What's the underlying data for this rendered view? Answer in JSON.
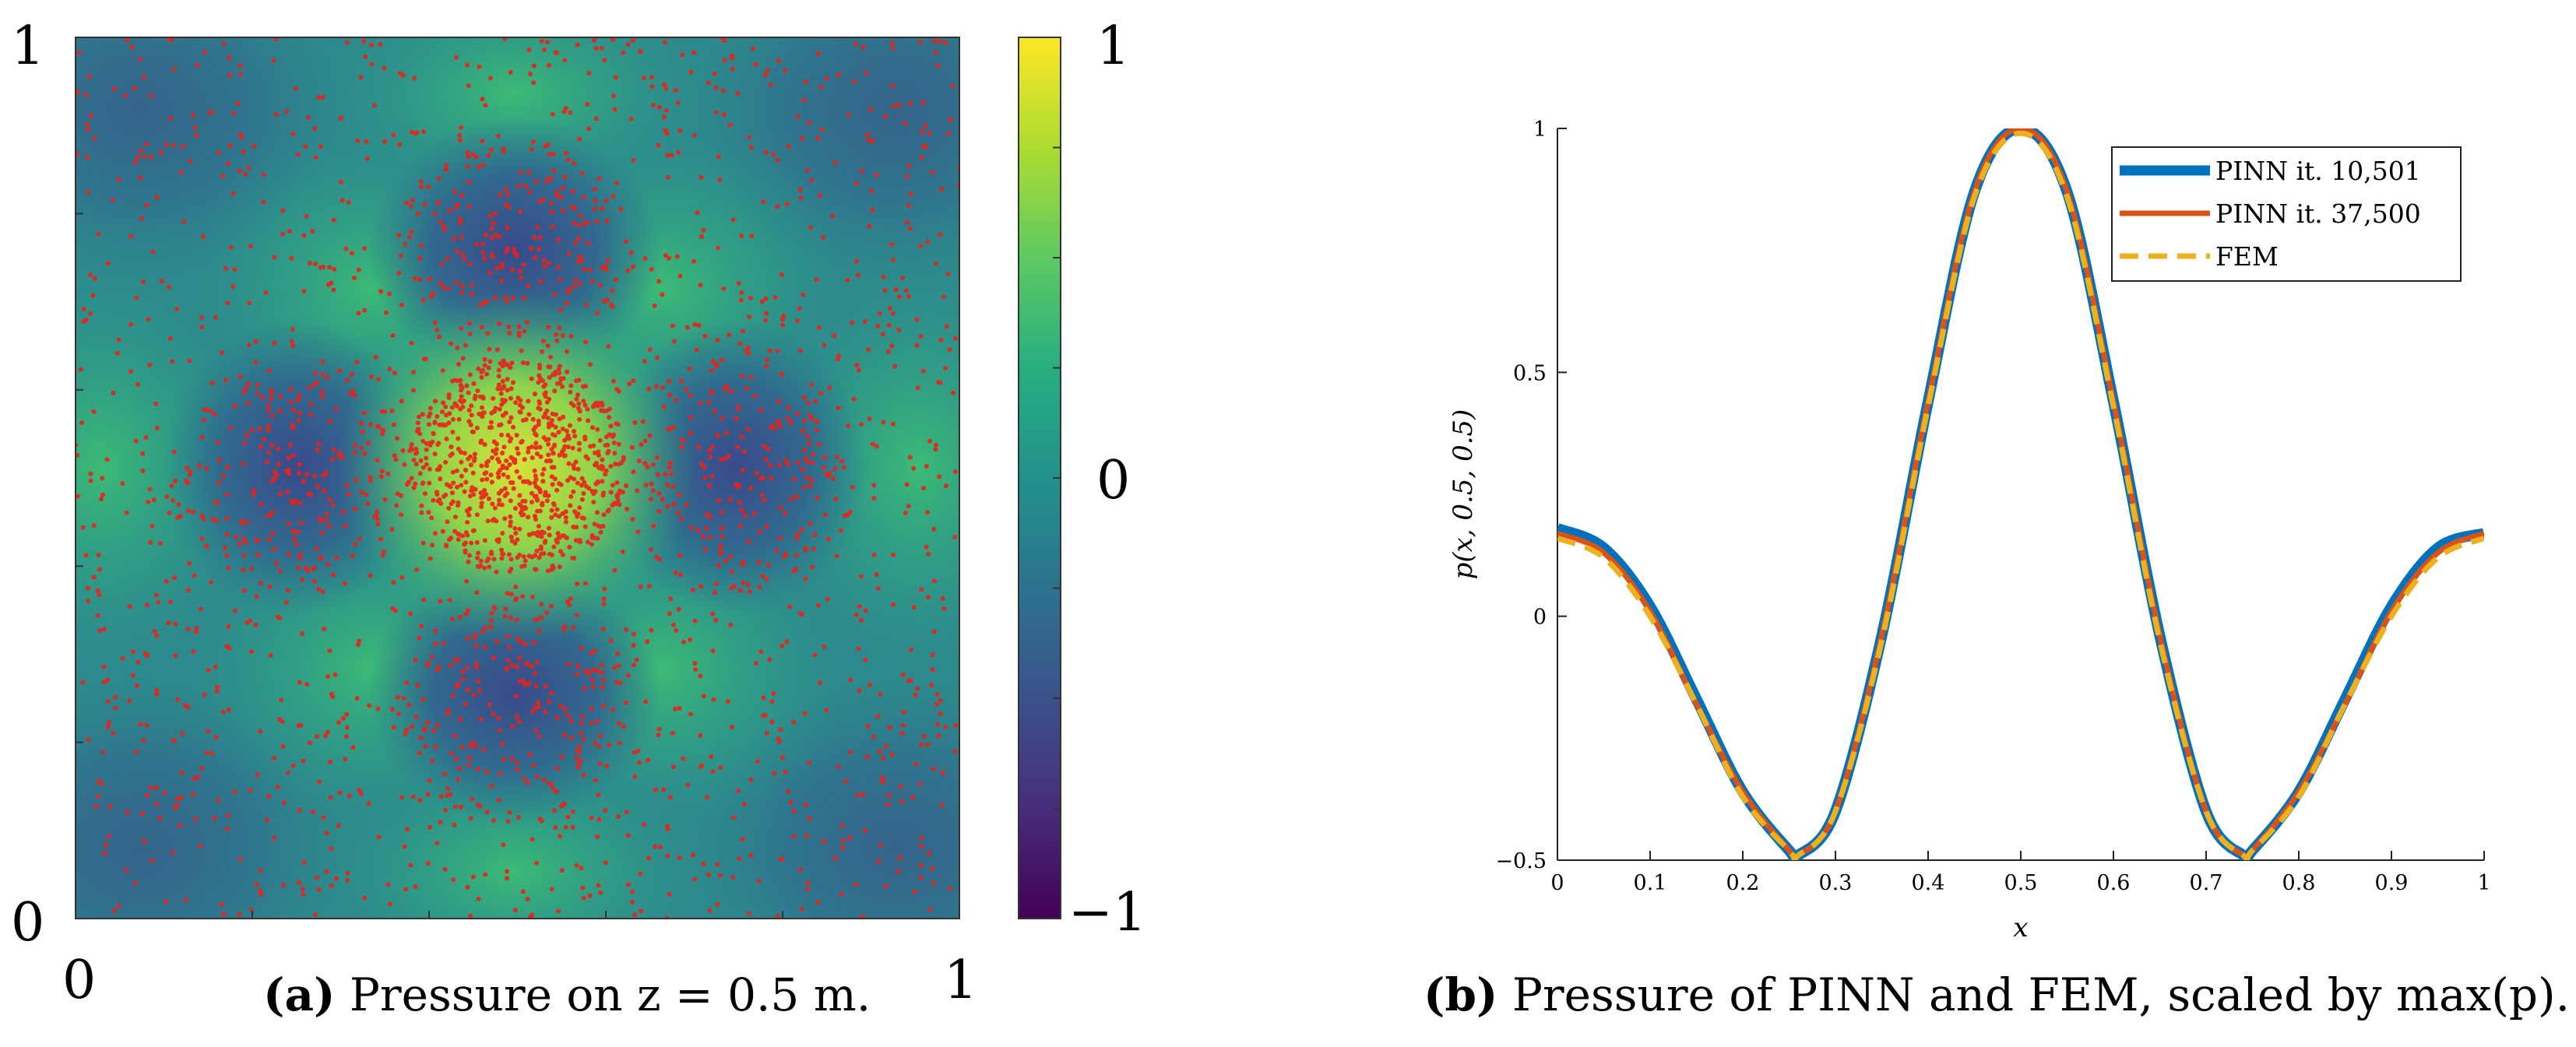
{
  "chart_data": [
    {
      "type": "heatmap",
      "title": "",
      "caption_label": "(a)",
      "caption_text": "Pressure on z = 0.5 m.",
      "xlim": [
        0,
        1
      ],
      "ylim": [
        0,
        1
      ],
      "x_tick_labels": [
        "0",
        "1"
      ],
      "y_tick_labels": [
        "0",
        "1"
      ],
      "colorbar": {
        "range": [
          -1,
          1
        ],
        "tick_labels": [
          "−1",
          "0",
          "1"
        ],
        "colormap": "viridis"
      },
      "field": "p(x,y,0.5) ≈ scaled Helmholtz mode, peak at (0.5,0.5)",
      "overlay": "red collocation points, densest near center"
    },
    {
      "type": "line",
      "title": "",
      "caption_label": "(b)",
      "caption_text": "Pressure of PINN and FEM, scaled by max(p).",
      "xlabel": "x",
      "ylabel": "p(x, 0.5, 0.5)",
      "xlim": [
        0,
        1
      ],
      "ylim": [
        -0.5,
        1
      ],
      "x_tick_labels": [
        "0",
        "0.1",
        "0.2",
        "0.3",
        "0.4",
        "0.5",
        "0.6",
        "0.7",
        "0.8",
        "0.9",
        "1"
      ],
      "y_tick_labels": [
        "−0.5",
        "0",
        "0.5",
        "1"
      ],
      "legend_position": "top-right",
      "x": [
        0,
        0.05,
        0.1,
        0.15,
        0.2,
        0.25,
        0.26,
        0.3,
        0.35,
        0.4,
        0.45,
        0.5,
        0.55,
        0.6,
        0.65,
        0.7,
        0.74,
        0.75,
        0.8,
        0.85,
        0.9,
        0.95,
        1
      ],
      "series": [
        {
          "name": "PINN it. 10,501",
          "color": "#0072BD",
          "style": "solid-thick",
          "values": [
            0.18,
            0.14,
            0.02,
            -0.17,
            -0.36,
            -0.48,
            -0.49,
            -0.4,
            -0.04,
            0.44,
            0.87,
            1.0,
            0.87,
            0.44,
            -0.04,
            -0.4,
            -0.49,
            -0.48,
            -0.36,
            -0.17,
            0.02,
            0.14,
            0.17
          ]
        },
        {
          "name": "PINN it. 37,500",
          "color": "#D95319",
          "style": "solid",
          "values": [
            0.17,
            0.13,
            0.01,
            -0.18,
            -0.36,
            -0.48,
            -0.49,
            -0.4,
            -0.04,
            0.44,
            0.87,
            1.0,
            0.87,
            0.44,
            -0.04,
            -0.4,
            -0.49,
            -0.48,
            -0.36,
            -0.18,
            0.01,
            0.13,
            0.17
          ]
        },
        {
          "name": "FEM",
          "color": "#EDB120",
          "style": "dashed",
          "values": [
            0.16,
            0.12,
            0.0,
            -0.18,
            -0.37,
            -0.48,
            -0.49,
            -0.4,
            -0.05,
            0.43,
            0.86,
            0.99,
            0.86,
            0.43,
            -0.05,
            -0.4,
            -0.49,
            -0.48,
            -0.37,
            -0.18,
            0.0,
            0.12,
            0.16
          ]
        }
      ]
    }
  ]
}
